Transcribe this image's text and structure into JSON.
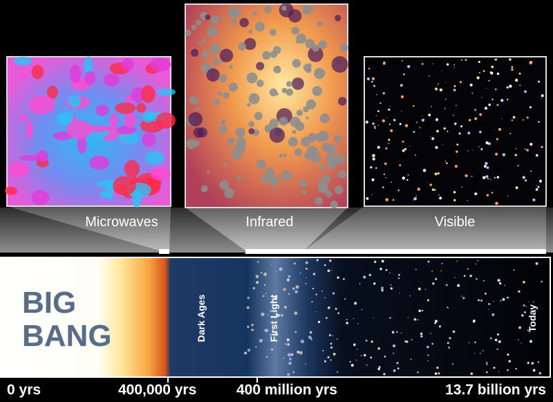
{
  "panels": [
    {
      "label": "Microwaves"
    },
    {
      "label": "Infrared"
    },
    {
      "label": "Visible"
    }
  ],
  "timeline": {
    "big_bang": [
      "BIG",
      "BANG"
    ],
    "eras": [
      "Dark Ages",
      "First Light",
      "Today"
    ]
  },
  "time_labels": [
    "0 yrs",
    "400,000 yrs",
    "400 million yrs",
    "13.7 billion yrs"
  ]
}
